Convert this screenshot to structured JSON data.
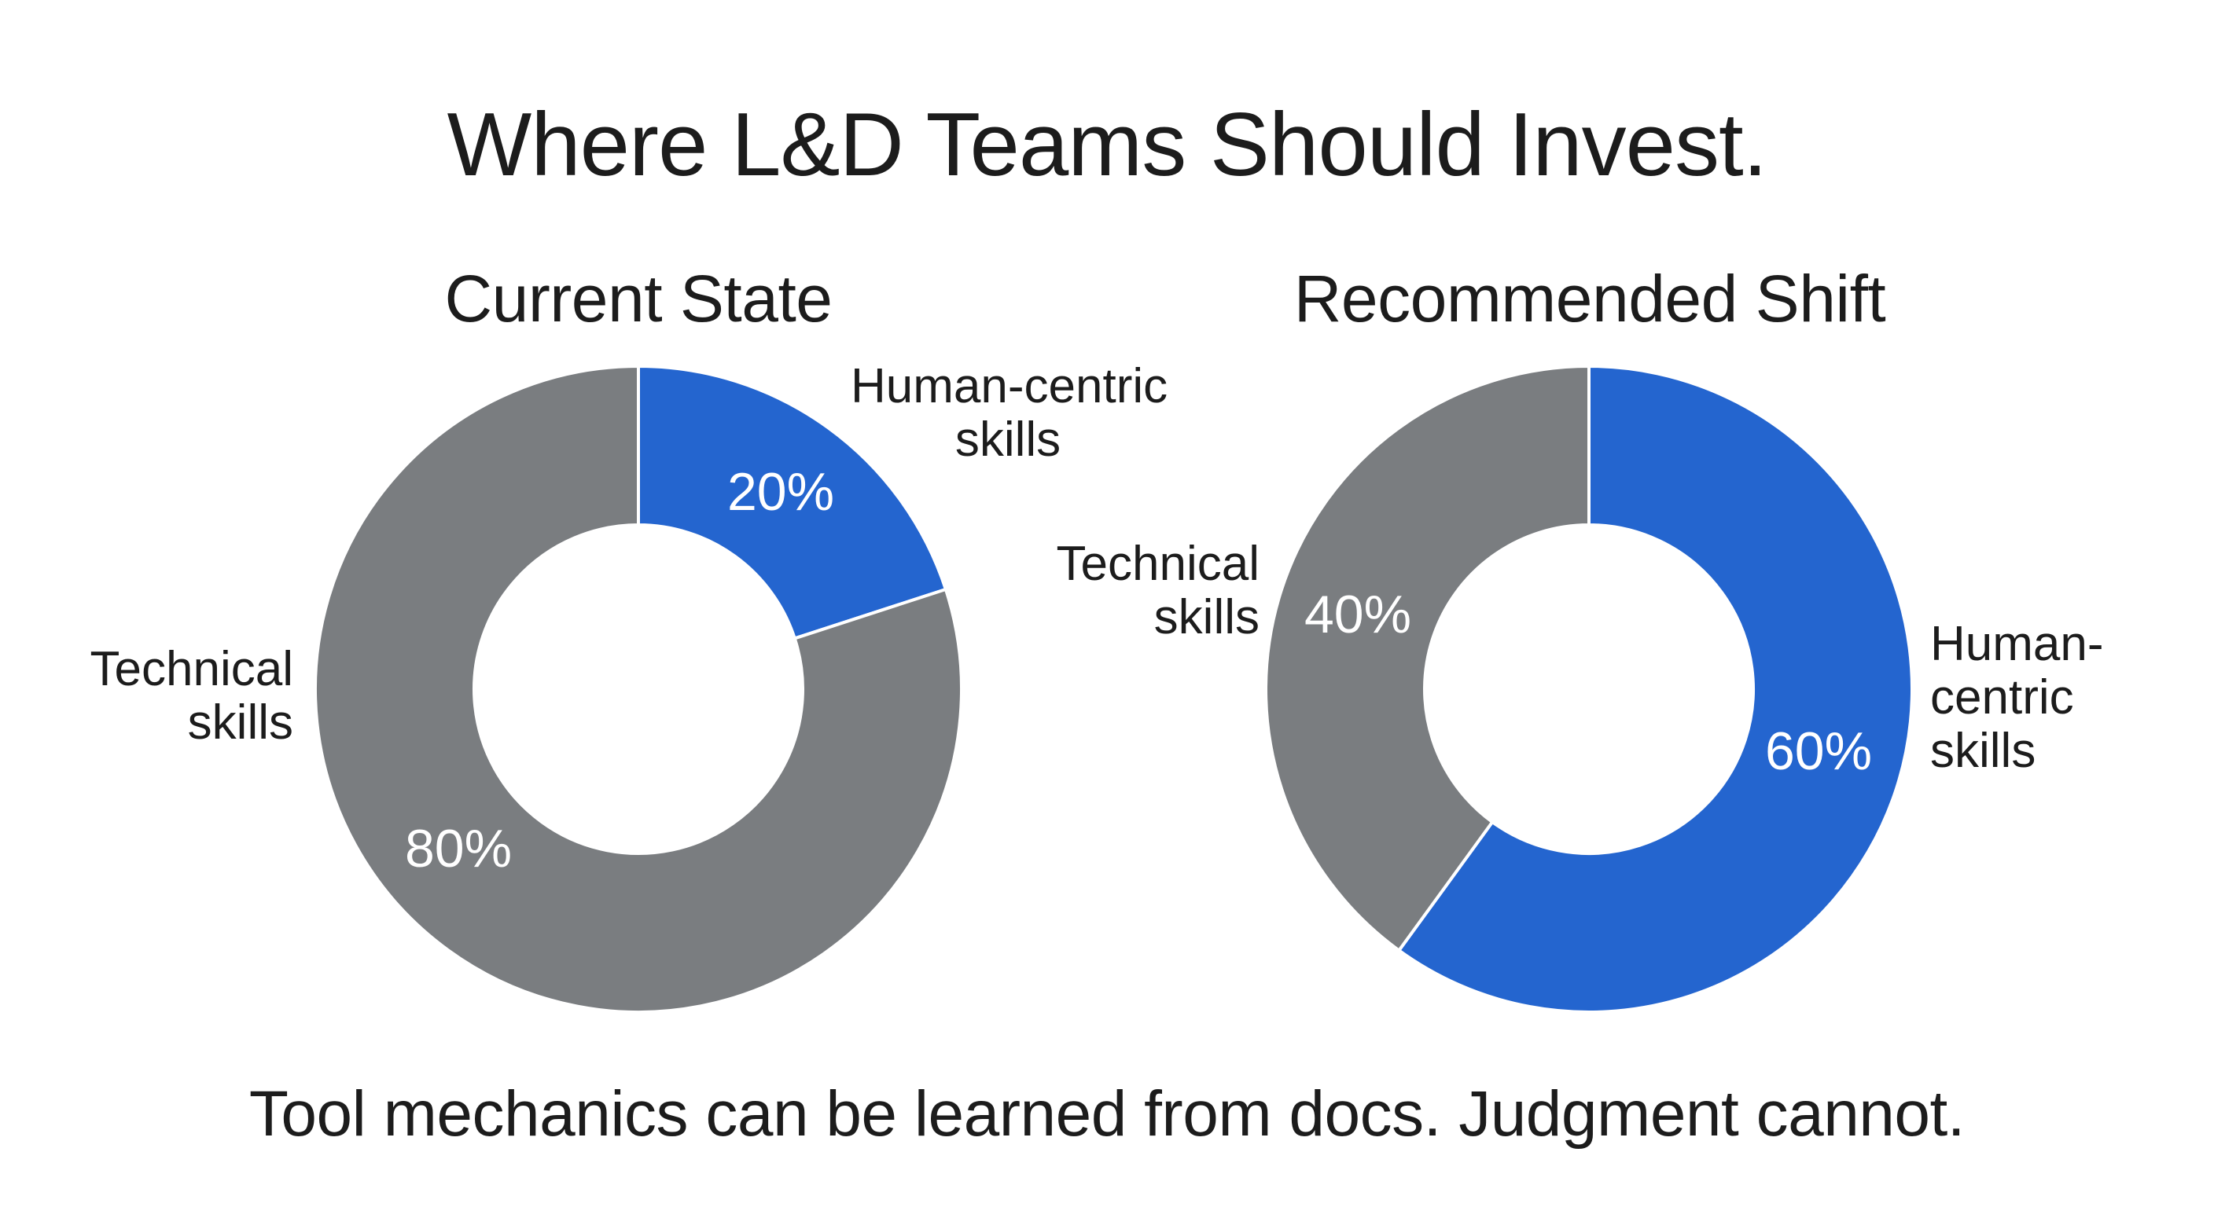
{
  "title": "Where L&D Teams Should Invest.",
  "footer": "Tool mechanics can be learned from docs. Judgment cannot.",
  "colors": {
    "technical": "#7A7D80",
    "human_centric": "#2465CF",
    "background": "#FFFFFF",
    "text": "#1C1C1C",
    "percent_text": "#FFFFFF"
  },
  "charts": [
    {
      "title": "Current State",
      "segments": [
        {
          "name": "Human-centric skills",
          "label_lines": [
            "Human-centric",
            "skills"
          ],
          "value": 20,
          "display": "20%"
        },
        {
          "name": "Technical skills",
          "label_lines": [
            "Technical",
            "skills"
          ],
          "value": 80,
          "display": "80%"
        }
      ]
    },
    {
      "title": "Recommended Shift",
      "segments": [
        {
          "name": "Human-centric skills",
          "label_lines": [
            "Human-",
            "centric",
            "skills"
          ],
          "value": 60,
          "display": "60%"
        },
        {
          "name": "Technical skills",
          "label_lines": [
            "Technical",
            "skills"
          ],
          "value": 40,
          "display": "40%"
        }
      ]
    }
  ],
  "chart_data": [
    {
      "type": "pie",
      "variant": "donut",
      "title": "Current State",
      "categories": [
        "Human-centric skills",
        "Technical skills"
      ],
      "values": [
        20,
        80
      ],
      "unit": "%",
      "colors": [
        "#2465CF",
        "#7A7D80"
      ],
      "start_angle": "12 o'clock, clockwise"
    },
    {
      "type": "pie",
      "variant": "donut",
      "title": "Recommended Shift",
      "categories": [
        "Human-centric skills",
        "Technical skills"
      ],
      "values": [
        60,
        40
      ],
      "unit": "%",
      "colors": [
        "#2465CF",
        "#7A7D80"
      ],
      "start_angle": "12 o'clock, clockwise"
    }
  ],
  "figure_title": "Where L&D Teams Should Invest.",
  "figure_caption": "Tool mechanics can be learned from docs. Judgment cannot."
}
